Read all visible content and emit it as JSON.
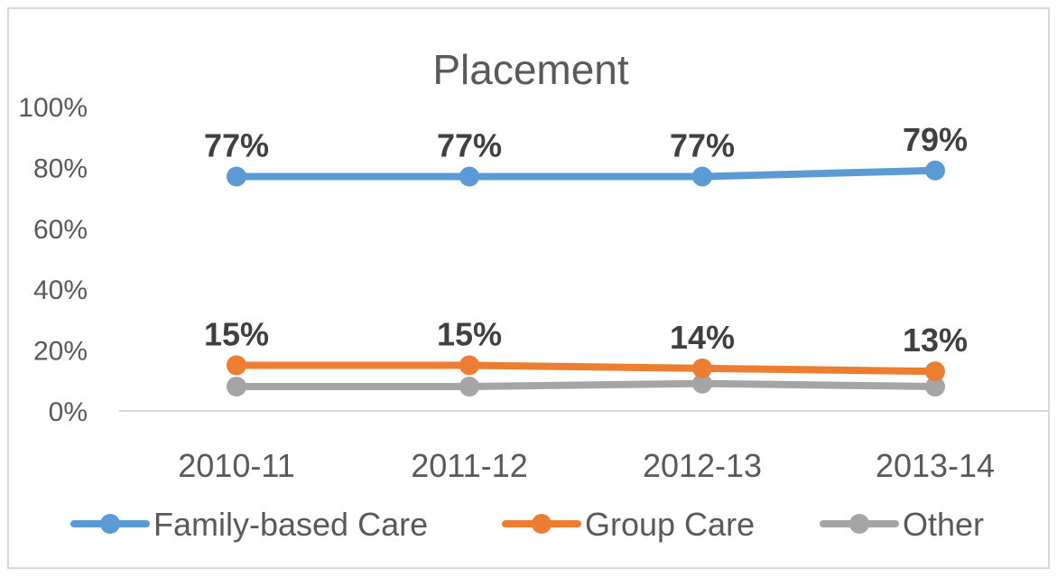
{
  "chart_data": {
    "type": "line",
    "title": "Placement",
    "categories": [
      "2010-11",
      "2011-12",
      "2012-13",
      "2013-14"
    ],
    "y_ticks": [
      "0%",
      "20%",
      "40%",
      "60%",
      "80%",
      "100%"
    ],
    "ylim": [
      0,
      100
    ],
    "grid": false,
    "legend_position": "bottom",
    "series": [
      {
        "name": "Family-based Care",
        "color": "#5b9bd5",
        "values": [
          77,
          77,
          77,
          79
        ],
        "labels": [
          "77%",
          "77%",
          "77%",
          "79%"
        ]
      },
      {
        "name": "Group Care",
        "color": "#ed7d31",
        "values": [
          15,
          15,
          14,
          13
        ],
        "labels": [
          "15%",
          "15%",
          "14%",
          "13%"
        ]
      },
      {
        "name": "Other",
        "color": "#a5a5a5",
        "values": [
          8,
          8,
          9,
          8
        ],
        "labels": []
      }
    ]
  }
}
